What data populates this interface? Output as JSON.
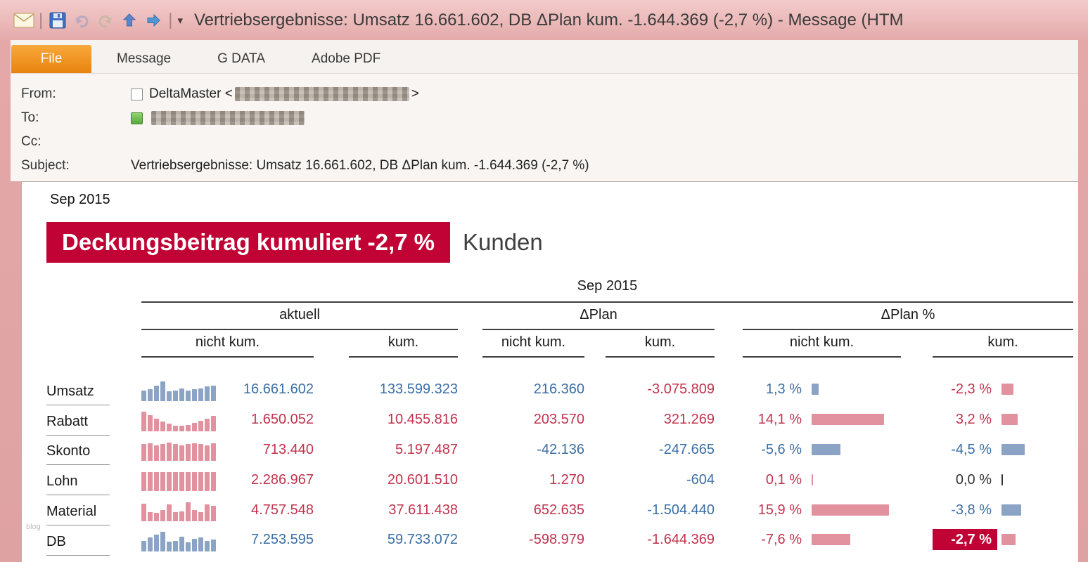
{
  "window": {
    "title": "Vertriebsergebnisse: Umsatz 16.661.602, DB ΔPlan kum. -1.644.369 (-2,7 %)  -  Message (HTM",
    "qat": {
      "separator": "|",
      "dropdown": "▾"
    }
  },
  "ribbon": {
    "tabs": [
      {
        "label": "File",
        "active": true
      },
      {
        "label": "Message",
        "active": false
      },
      {
        "label": "G DATA",
        "active": false
      },
      {
        "label": "Adobe PDF",
        "active": false
      }
    ]
  },
  "mail_header": {
    "from_label": "From:",
    "from_name_prefix": "DeltaMaster <",
    "from_suffix": ">",
    "to_label": "To:",
    "cc_label": "Cc:",
    "subject_label": "Subject:",
    "subject_value": "Vertriebsergebnisse: Umsatz 16.661.602, DB ΔPlan kum. -1.644.369 (-2,7 %)"
  },
  "report": {
    "period": "Sep 2015",
    "banner_title": "Deckungsbeitrag kumuliert -2,7 %",
    "banner_suffix": "Kunden",
    "colors": {
      "pos": "#3a6ea5",
      "neg": "#c0334d",
      "bar_pos": "#8ba3c4",
      "bar_neg": "#e2919f",
      "neutral": "#333333",
      "banner": "#c00334"
    },
    "table": {
      "period": "Sep 2015",
      "groups": [
        "aktuell",
        "ΔPlan",
        "ΔPlan %"
      ],
      "subheaders": [
        "nicht kum.",
        "kum.",
        "nicht kum.",
        "kum.",
        "nicht kum.",
        "kum."
      ],
      "rows": [
        {
          "label": "Umsatz",
          "spark": {
            "color": "pos",
            "bars": [
              0.55,
              0.6,
              0.8,
              1.0,
              0.5,
              0.55,
              0.65,
              0.55,
              0.6,
              0.65,
              0.75,
              0.8
            ]
          },
          "cells": [
            {
              "text": "16.661.602",
              "color": "pos"
            },
            {
              "text": "133.599.323",
              "color": "pos"
            },
            {
              "text": "216.360",
              "color": "pos"
            },
            {
              "text": "-3.075.809",
              "color": "neg"
            }
          ],
          "pct": [
            {
              "text": "1,3 %",
              "color": "pos",
              "bar": 10
            },
            {
              "text": "-2,3 %",
              "color": "neg",
              "bar": 17
            }
          ]
        },
        {
          "label": "Rabatt",
          "spark": {
            "color": "neg",
            "bars": [
              1.0,
              0.82,
              0.66,
              0.5,
              0.4,
              0.3,
              0.28,
              0.32,
              0.42,
              0.52,
              0.64,
              0.78
            ]
          },
          "cells": [
            {
              "text": "1.650.052",
              "color": "neg"
            },
            {
              "text": "10.455.816",
              "color": "neg"
            },
            {
              "text": "203.570",
              "color": "neg"
            },
            {
              "text": "321.269",
              "color": "neg"
            }
          ],
          "pct": [
            {
              "text": "14,1 %",
              "color": "neg",
              "bar": 103
            },
            {
              "text": "3,2 %",
              "color": "neg",
              "bar": 23
            }
          ]
        },
        {
          "label": "Skonto",
          "spark": {
            "color": "neg",
            "bars": [
              0.85,
              0.9,
              0.8,
              0.85,
              0.92,
              0.84,
              0.8,
              0.86,
              0.9,
              0.84,
              0.8,
              0.9
            ]
          },
          "cells": [
            {
              "text": "713.440",
              "color": "neg"
            },
            {
              "text": "5.197.487",
              "color": "neg"
            },
            {
              "text": "-42.136",
              "color": "pos"
            },
            {
              "text": "-247.665",
              "color": "pos"
            }
          ],
          "pct": [
            {
              "text": "-5,6 %",
              "color": "pos",
              "bar": 41
            },
            {
              "text": "-4,5 %",
              "color": "pos",
              "bar": 33
            }
          ]
        },
        {
          "label": "Lohn",
          "spark": {
            "color": "neg",
            "bars": [
              0.95,
              0.95,
              0.95,
              0.95,
              0.95,
              0.95,
              0.95,
              0.95,
              0.95,
              0.95,
              0.95,
              0.95
            ]
          },
          "cells": [
            {
              "text": "2.286.967",
              "color": "neg"
            },
            {
              "text": "20.601.510",
              "color": "neg"
            },
            {
              "text": "1.270",
              "color": "neg"
            },
            {
              "text": "-604",
              "color": "pos"
            }
          ],
          "pct": [
            {
              "text": "0,1 %",
              "color": "neg",
              "bar": 2
            },
            {
              "text": "0,0 %",
              "color": "neutral",
              "bar": 2
            }
          ]
        },
        {
          "label": "Material",
          "spark": {
            "color": "neg",
            "bars": [
              0.9,
              0.46,
              0.42,
              0.56,
              0.86,
              0.46,
              0.5,
              0.95,
              0.56,
              0.46,
              0.86,
              0.8
            ]
          },
          "cells": [
            {
              "text": "4.757.548",
              "color": "neg"
            },
            {
              "text": "37.611.438",
              "color": "neg"
            },
            {
              "text": "652.635",
              "color": "neg"
            },
            {
              "text": "-1.504.440",
              "color": "pos"
            }
          ],
          "pct": [
            {
              "text": "15,9 %",
              "color": "neg",
              "bar": 110
            },
            {
              "text": "-3,8 %",
              "color": "pos",
              "bar": 28
            }
          ]
        },
        {
          "label": "DB",
          "spark": {
            "color": "pos",
            "bars": [
              0.55,
              0.7,
              0.85,
              1.0,
              0.5,
              0.55,
              0.75,
              0.45,
              0.65,
              0.7,
              0.55,
              0.6
            ]
          },
          "cells": [
            {
              "text": "7.253.595",
              "color": "pos"
            },
            {
              "text": "59.733.072",
              "color": "pos"
            },
            {
              "text": "-598.979",
              "color": "neg"
            },
            {
              "text": "-1.644.369",
              "color": "neg"
            }
          ],
          "pct": [
            {
              "text": "-7,6 %",
              "color": "neg",
              "bar": 55
            },
            {
              "text": "-2,7 %",
              "color": "neg",
              "bar": 20,
              "highlight": true
            }
          ]
        }
      ]
    }
  },
  "watermark": "blog"
}
